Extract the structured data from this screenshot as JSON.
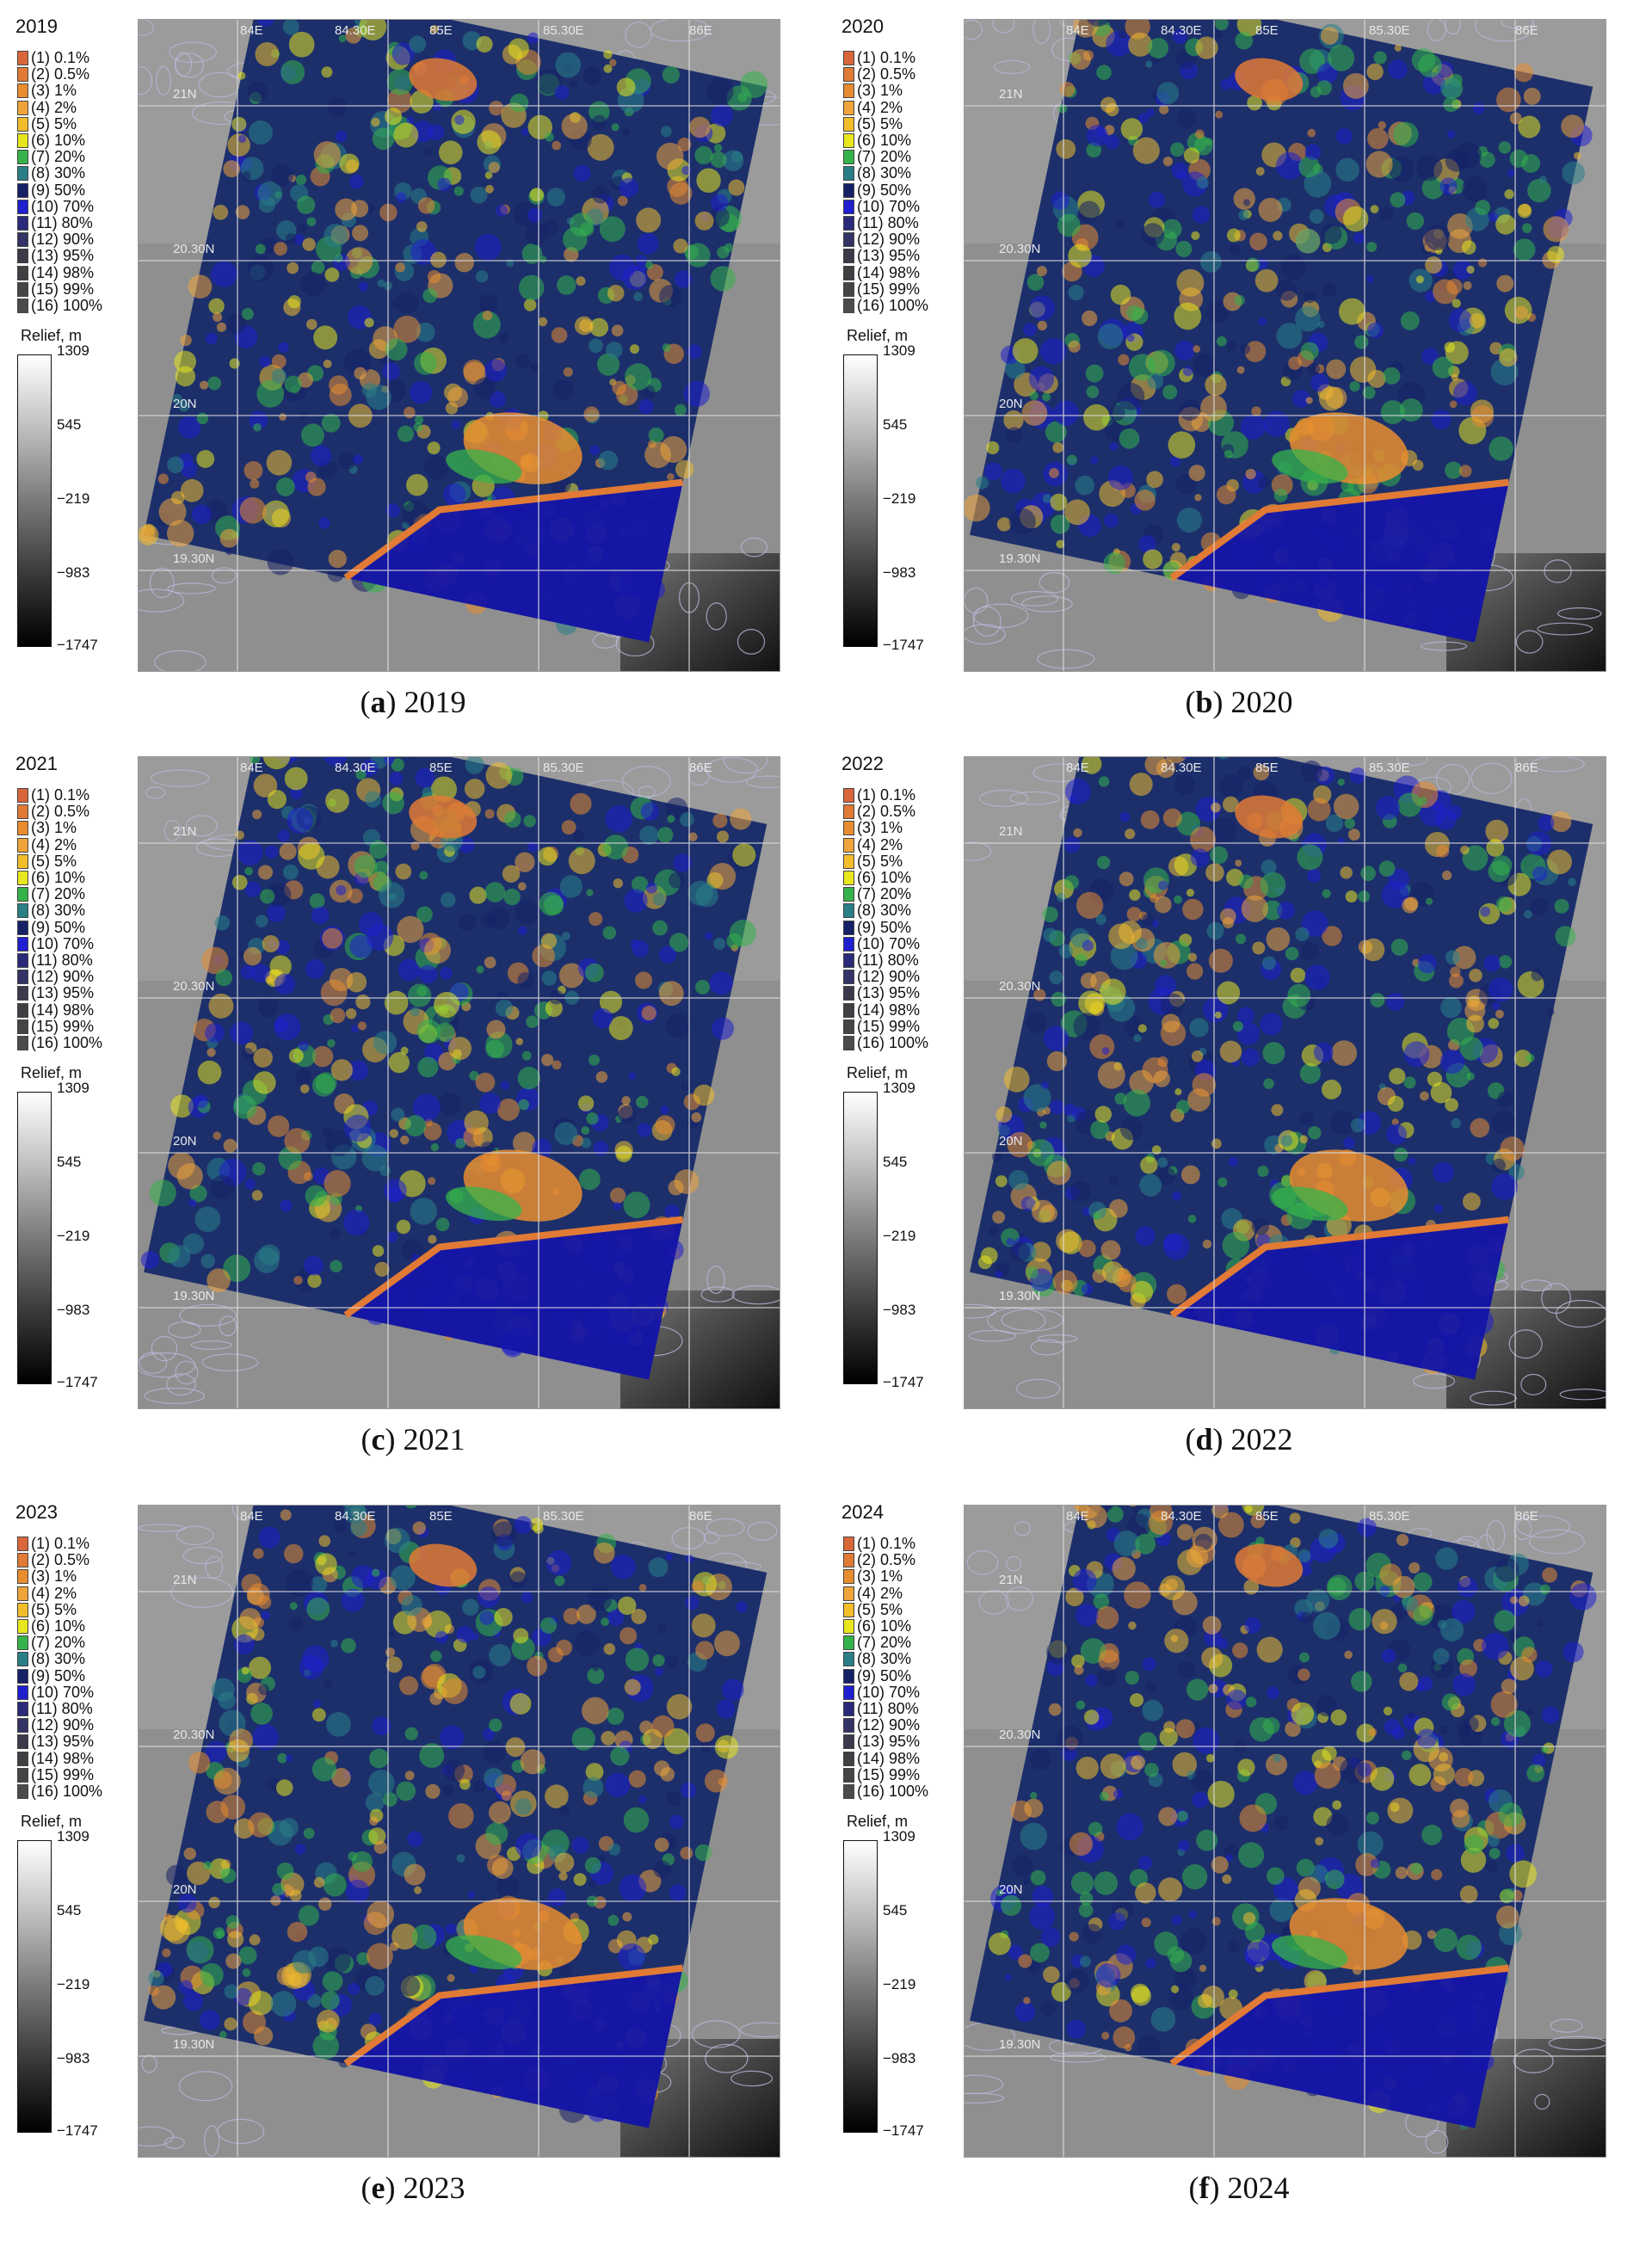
{
  "legend_classes": [
    {
      "label": "(1) 0.1%",
      "color": "#d9663a"
    },
    {
      "label": "(2) 0.5%",
      "color": "#e07a35"
    },
    {
      "label": "(3) 1%",
      "color": "#e88d2f"
    },
    {
      "label": "(4) 2%",
      "color": "#eea43a"
    },
    {
      "label": "(5) 5%",
      "color": "#f2bd2b"
    },
    {
      "label": "(6) 10%",
      "color": "#e8e61e"
    },
    {
      "label": "(7) 20%",
      "color": "#35b34a"
    },
    {
      "label": "(8) 30%",
      "color": "#2a7f86"
    },
    {
      "label": "(9) 50%",
      "color": "#152066"
    },
    {
      "label": "(10) 70%",
      "color": "#1f1fd0"
    },
    {
      "label": "(11) 80%",
      "color": "#2a2a7a"
    },
    {
      "label": "(12) 90%",
      "color": "#333366"
    },
    {
      "label": "(13) 95%",
      "color": "#3a3a4a"
    },
    {
      "label": "(14) 98%",
      "color": "#3f3f44"
    },
    {
      "label": "(15) 99%",
      "color": "#454548"
    },
    {
      "label": "(16) 100%",
      "color": "#4b4b4b"
    }
  ],
  "relief": {
    "title": "Relief, m",
    "ticks": [
      "1309",
      "545",
      "−219",
      "−983",
      "−1747"
    ]
  },
  "map_coords": [
    "84E",
    "84.30E",
    "85E",
    "85.30E",
    "86E",
    "21N",
    "20.30N",
    "20N",
    "19.30N"
  ],
  "panels": [
    {
      "id": "a",
      "year": "2019",
      "caption_letter": "a",
      "caption_year": " 2019"
    },
    {
      "id": "b",
      "year": "2020",
      "caption_letter": "b",
      "caption_year": " 2020"
    },
    {
      "id": "c",
      "year": "2021",
      "caption_letter": "c",
      "caption_year": " 2021"
    },
    {
      "id": "d",
      "year": "2022",
      "caption_letter": "d",
      "caption_year": " 2022"
    },
    {
      "id": "e",
      "year": "2023",
      "caption_letter": "e",
      "caption_year": " 2023"
    },
    {
      "id": "f",
      "year": "2024",
      "caption_letter": "f",
      "caption_year": " 2024"
    }
  ]
}
